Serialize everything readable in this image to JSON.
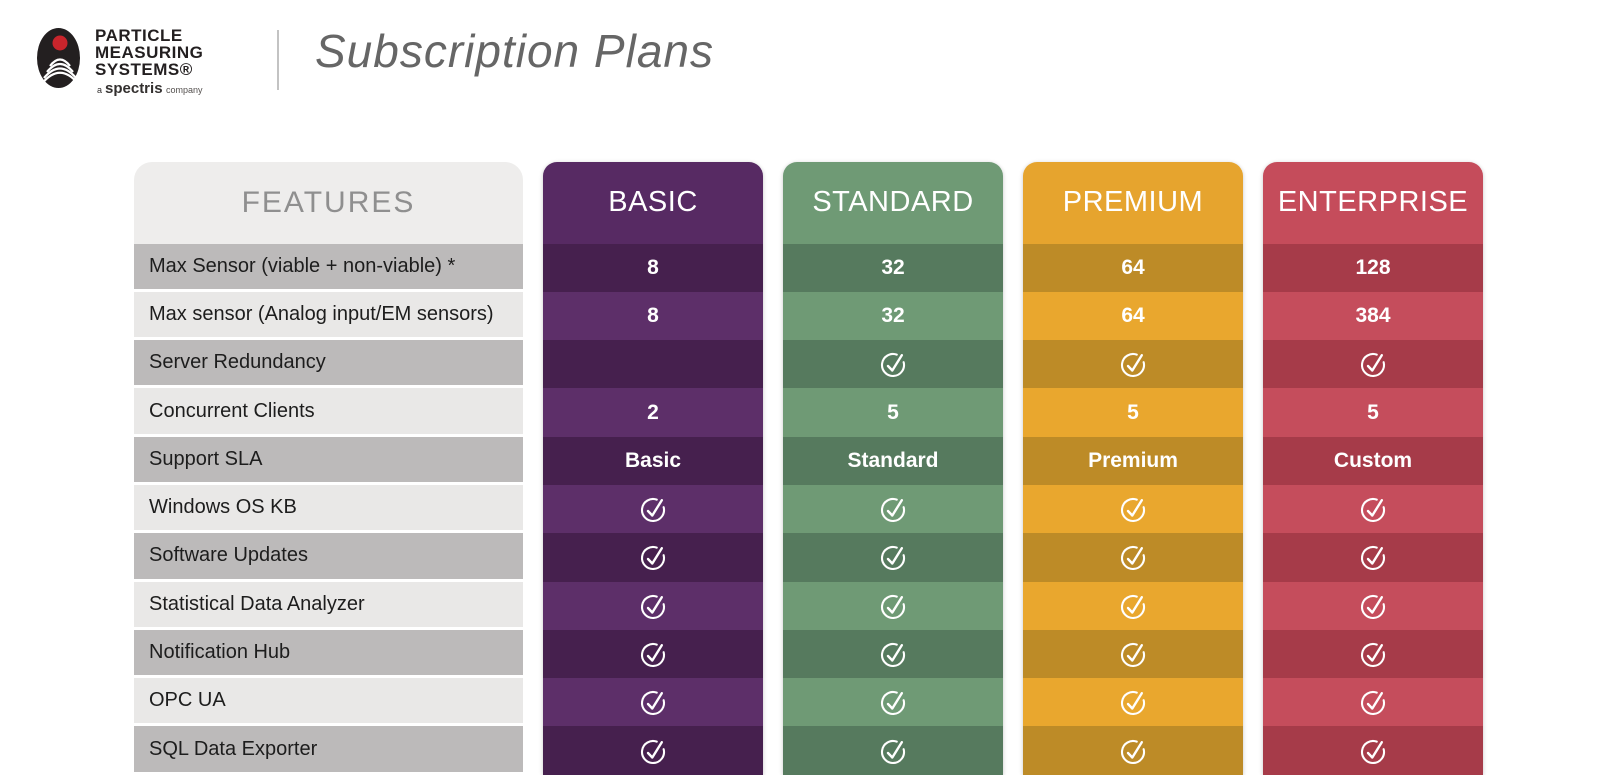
{
  "brand": {
    "l1": "PARTICLE",
    "l2": "MEASURING",
    "l3": "SYSTEMS®",
    "sub_a": "a",
    "sub_name": "spectris",
    "sub_company": "company",
    "mark_bg": "#231f20",
    "mark_dot": "#c9252c"
  },
  "header": {
    "title": "Subscription Plans"
  },
  "table": {
    "features_header": "FEATURES",
    "row_labels": [
      "Max Sensor (viable + non-viable) *",
      "Max sensor (Analog input/EM sensors)",
      "Server Redundancy",
      "Concurrent Clients",
      "Support SLA",
      "Windows OS KB",
      "Software Updates",
      "Statistical Data Analyzer",
      "Notification Hub",
      "OPC UA",
      "SQL Data Exporter"
    ],
    "features_colors": {
      "header_bg": "#eeedec",
      "header_text": "#8f8f8f",
      "row_dark": "#bcbaba",
      "row_light": "#e9e8e7",
      "label_text": "#1d1d1d"
    },
    "check_color": "#ffffff",
    "plans": [
      {
        "name": "BASIC",
        "header_bg": "#572a63",
        "row_light": "#5d2f69",
        "row_dark": "#46204e",
        "values": [
          "8",
          "8",
          "",
          "2",
          "Basic",
          "check",
          "check",
          "check",
          "check",
          "check",
          "check"
        ]
      },
      {
        "name": "STANDARD",
        "header_bg": "#6f9a75",
        "row_light": "#6f9a75",
        "row_dark": "#567a5e",
        "values": [
          "32",
          "32",
          "check",
          "5",
          "Standard",
          "check",
          "check",
          "check",
          "check",
          "check",
          "check"
        ]
      },
      {
        "name": "PREMIUM",
        "header_bg": "#e6a42e",
        "row_light": "#e9a72e",
        "row_dark": "#bd8b27",
        "values": [
          "64",
          "64",
          "check",
          "5",
          "Premium",
          "check",
          "check",
          "check",
          "check",
          "check",
          "check"
        ]
      },
      {
        "name": "ENTERPRISE",
        "header_bg": "#c54c5b",
        "row_light": "#c54d5c",
        "row_dark": "#a63b49",
        "values": [
          "128",
          "384",
          "check",
          "5",
          "Custom",
          "check",
          "check",
          "check",
          "check",
          "check",
          "check"
        ]
      }
    ]
  }
}
